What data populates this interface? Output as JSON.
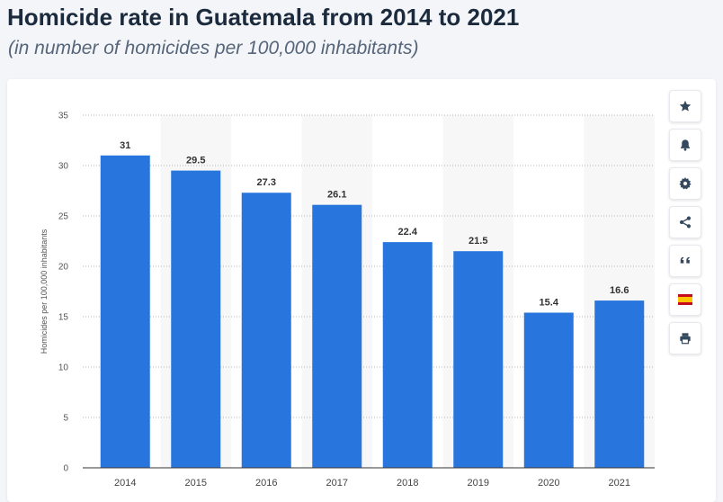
{
  "page": {
    "title": "Homicide rate in Guatemala from 2014 to 2021",
    "subtitle": "(in number of homicides per 100,000 inhabitants)"
  },
  "toolbar": {
    "icons": [
      "star-icon",
      "bell-icon",
      "gear-icon",
      "share-icon",
      "quote-icon",
      "spain-flag-icon",
      "print-icon"
    ]
  },
  "colors": {
    "bar": "#2876dd",
    "icon": "#34495e",
    "alt_band": "#f7f7f7"
  },
  "chart_data": {
    "type": "bar",
    "title": "Homicide rate in Guatemala from 2014 to 2021",
    "subtitle": "(in number of homicides per 100,000 inhabitants)",
    "categories": [
      "2014",
      "2015",
      "2016",
      "2017",
      "2018",
      "2019",
      "2020",
      "2021"
    ],
    "values": [
      31,
      29.5,
      27.3,
      26.1,
      22.4,
      21.5,
      15.4,
      16.6
    ],
    "value_labels": [
      "31",
      "29.5",
      "27.3",
      "26.1",
      "22.4",
      "21.5",
      "15.4",
      "16.6"
    ],
    "xlabel": "",
    "ylabel": "Homicides per 100,000 inhabitants",
    "ylim": [
      0,
      35
    ],
    "yticks": [
      "0",
      "5",
      "10",
      "15",
      "20",
      "25",
      "30",
      "35"
    ],
    "grid": true,
    "legend": "none"
  }
}
